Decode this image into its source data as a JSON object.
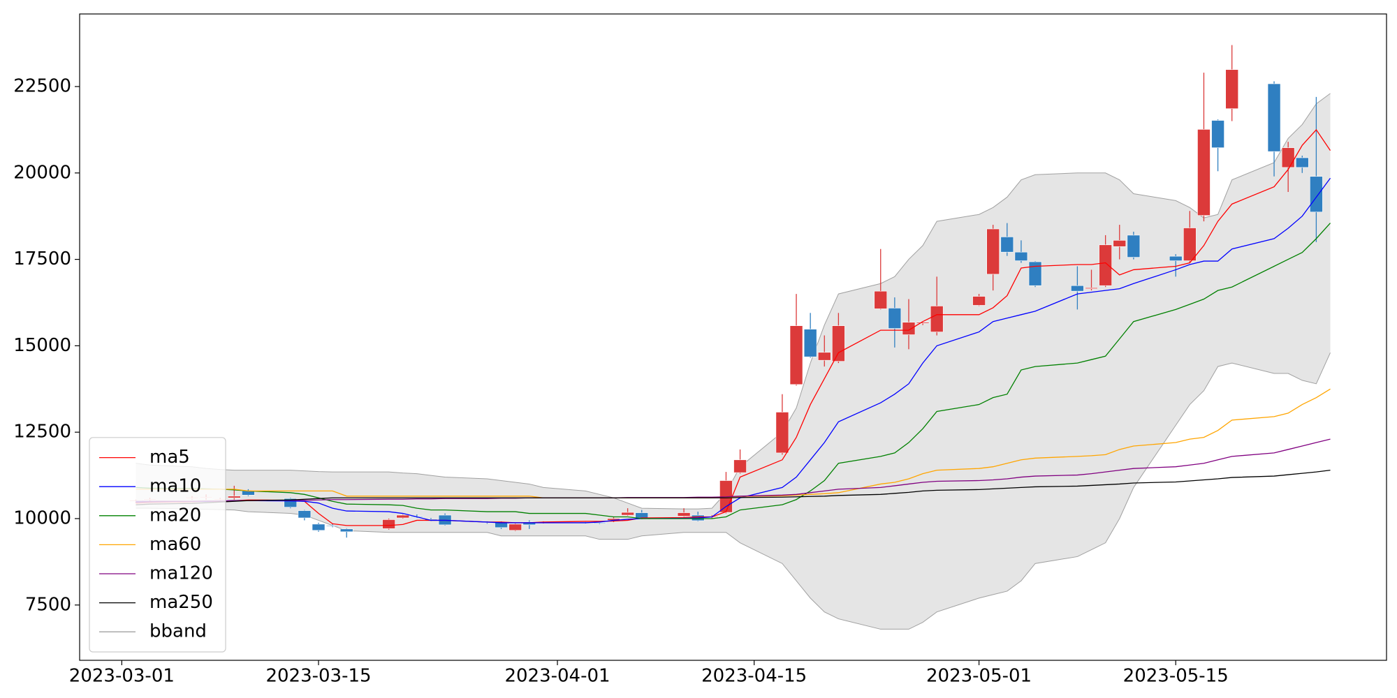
{
  "chart_data": {
    "type": "candlestick",
    "x": [
      "2023-03-02",
      "2023-03-03",
      "2023-03-06",
      "2023-03-07",
      "2023-03-08",
      "2023-03-09",
      "2023-03-10",
      "2023-03-13",
      "2023-03-14",
      "2023-03-15",
      "2023-03-16",
      "2023-03-17",
      "2023-03-20",
      "2023-03-21",
      "2023-03-22",
      "2023-03-23",
      "2023-03-24",
      "2023-03-27",
      "2023-03-28",
      "2023-03-29",
      "2023-03-30",
      "2023-03-31",
      "2023-04-03",
      "2023-04-04",
      "2023-04-05",
      "2023-04-06",
      "2023-04-07",
      "2023-04-10",
      "2023-04-11",
      "2023-04-12",
      "2023-04-13",
      "2023-04-14",
      "2023-04-17",
      "2023-04-18",
      "2023-04-19",
      "2023-04-20",
      "2023-04-21",
      "2023-04-24",
      "2023-04-25",
      "2023-04-26",
      "2023-04-27",
      "2023-04-28",
      "2023-05-01",
      "2023-05-02",
      "2023-05-03",
      "2023-05-04",
      "2023-05-05",
      "2023-05-08",
      "2023-05-09",
      "2023-05-10",
      "2023-05-11",
      "2023-05-12",
      "2023-05-15",
      "2023-05-16",
      "2023-05-17",
      "2023-05-18",
      "2023-05-19",
      "2023-05-22",
      "2023-05-23",
      "2023-05-24",
      "2023-05-25",
      "2023-05-26"
    ],
    "open": [
      10500,
      10550,
      10600,
      10600,
      10550,
      10600,
      10800,
      10580,
      10230,
      9840,
      9800,
      9700,
      9710,
      10020,
      10060,
      9980,
      10100,
      9900,
      9890,
      9660,
      9900,
      9880,
      9900,
      9880,
      9950,
      10100,
      10170,
      10070,
      10100,
      10050,
      10180,
      11330,
      11900,
      13880,
      15480,
      14580,
      14550,
      16070,
      16090,
      15320,
      15650,
      15400,
      16170,
      17070,
      18150,
      17710,
      17430,
      16740,
      16650,
      16740,
      17870,
      18200,
      17590,
      17460,
      18770,
      21520,
      21860,
      22580,
      20160,
      20440,
      19900,
      null
    ],
    "high": [
      10550,
      10600,
      10650,
      10700,
      10600,
      10950,
      10850,
      10600,
      10250,
      9880,
      9850,
      9720,
      10000,
      10120,
      10120,
      10020,
      10150,
      9920,
      9920,
      9860,
      9950,
      9920,
      9930,
      9920,
      10050,
      10300,
      10250,
      10300,
      10200,
      10100,
      11350,
      12000,
      13600,
      16500,
      15950,
      15300,
      15950,
      17800,
      16400,
      16350,
      15700,
      17000,
      16500,
      18500,
      18550,
      18050,
      17450,
      17300,
      17200,
      18200,
      18500,
      18300,
      17650,
      18900,
      22900,
      21550,
      23700,
      22650,
      20900,
      20500,
      22200,
      null
    ],
    "low": [
      10450,
      10500,
      10550,
      10550,
      10500,
      10550,
      10650,
      10300,
      9950,
      9620,
      9750,
      9450,
      9680,
      10000,
      10020,
      9930,
      9800,
      9850,
      9700,
      9640,
      9700,
      9860,
      9860,
      9840,
      9900,
      10080,
      9980,
      10050,
      9920,
      10000,
      10150,
      11300,
      11850,
      13850,
      14650,
      14400,
      14500,
      16050,
      14950,
      14900,
      15600,
      15300,
      16150,
      16600,
      17600,
      17400,
      16700,
      16050,
      16600,
      16700,
      17500,
      17500,
      17000,
      17400,
      18600,
      20050,
      21500,
      19900,
      19450,
      20000,
      18000,
      null
    ],
    "close": [
      10520,
      10560,
      10600,
      10620,
      10560,
      10650,
      10680,
      10330,
      10020,
      9660,
      9780,
      9620,
      9970,
      10100,
      10050,
      9950,
      9820,
      9880,
      9740,
      9840,
      9820,
      9900,
      9890,
      9870,
      10000,
      10180,
      9990,
      10170,
      9940,
      10060,
      11100,
      11700,
      13080,
      15580,
      14680,
      14810,
      15580,
      16580,
      15500,
      15680,
      15680,
      16150,
      16430,
      18380,
      17710,
      17460,
      16740,
      16580,
      16680,
      17920,
      18050,
      17560,
      17460,
      18410,
      21260,
      20730,
      22990,
      20620,
      20730,
      20160,
      18870,
      null
    ],
    "up_color": "#dc3a3a",
    "down_color": "#2f7fc1",
    "series": [
      {
        "name": "ma5",
        "color": "#ff0000",
        "values": [
          10450,
          10470,
          10490,
          10500,
          10500,
          10520,
          10540,
          10530,
          10500,
          10150,
          9850,
          9800,
          9800,
          9830,
          9950,
          9950,
          9950,
          9900,
          9900,
          9880,
          9880,
          9900,
          9920,
          9920,
          9930,
          9950,
          10020,
          10030,
          10050,
          10050,
          10200,
          11200,
          11700,
          12350,
          13300,
          14050,
          14800,
          15450,
          15450,
          15450,
          15700,
          15900,
          15900,
          16100,
          16450,
          17250,
          17300,
          17350,
          17350,
          17400,
          17050,
          17200,
          17300,
          17400,
          17900,
          18600,
          19100,
          19600,
          20100,
          20800,
          21250,
          20650
        ]
      },
      {
        "name": "ma10",
        "color": "#0000ff",
        "values": [
          10480,
          10490,
          10500,
          10500,
          10510,
          10520,
          10520,
          10510,
          10500,
          10450,
          10300,
          10220,
          10200,
          10150,
          10050,
          9950,
          9950,
          9900,
          9880,
          9880,
          9880,
          9880,
          9880,
          9900,
          9950,
          9980,
          10000,
          10010,
          10020,
          10050,
          10350,
          10600,
          10900,
          11200,
          11700,
          12200,
          12800,
          13350,
          13600,
          13900,
          14500,
          15000,
          15400,
          15700,
          15800,
          15900,
          16000,
          16500,
          16550,
          16600,
          16650,
          16800,
          17200,
          17350,
          17450,
          17450,
          17800,
          18100,
          18400,
          18750,
          19300,
          19850
        ]
      },
      {
        "name": "ma20",
        "color": "#008000",
        "values": [
          10900,
          10880,
          10870,
          10860,
          10850,
          10830,
          10800,
          10750,
          10700,
          10600,
          10500,
          10420,
          10400,
          10380,
          10300,
          10250,
          10250,
          10200,
          10200,
          10200,
          10150,
          10150,
          10150,
          10100,
          10050,
          10050,
          10000,
          10000,
          10000,
          10000,
          10050,
          10250,
          10400,
          10550,
          10800,
          11100,
          11600,
          11800,
          11900,
          12200,
          12600,
          13100,
          13300,
          13500,
          13600,
          14300,
          14400,
          14500,
          14600,
          14700,
          15200,
          15700,
          16050,
          16200,
          16350,
          16600,
          16700,
          17300,
          17500,
          17700,
          18100,
          18550
        ]
      },
      {
        "name": "ma60",
        "color": "#ffa500",
        "values": [
          10850,
          10850,
          10850,
          10850,
          10850,
          10850,
          10800,
          10800,
          10800,
          10800,
          10800,
          10650,
          10650,
          10650,
          10650,
          10650,
          10650,
          10650,
          10650,
          10650,
          10650,
          10600,
          10600,
          10600,
          10600,
          10600,
          10600,
          10600,
          10600,
          10600,
          10620,
          10640,
          10660,
          10680,
          10700,
          10720,
          10750,
          11000,
          11050,
          11150,
          11300,
          11400,
          11450,
          11500,
          11600,
          11700,
          11750,
          11800,
          11820,
          11850,
          12000,
          12100,
          12200,
          12300,
          12350,
          12550,
          12850,
          12950,
          13050,
          13300,
          13500,
          13750
        ]
      },
      {
        "name": "ma120",
        "color": "#800080",
        "values": [
          10500,
          10500,
          10500,
          10510,
          10510,
          10520,
          10520,
          10530,
          10530,
          10540,
          10550,
          10550,
          10560,
          10560,
          10570,
          10570,
          10580,
          10580,
          10590,
          10590,
          10600,
          10600,
          10600,
          10600,
          10600,
          10610,
          10610,
          10610,
          10620,
          10620,
          10630,
          10650,
          10680,
          10700,
          10750,
          10800,
          10850,
          10900,
          10950,
          11000,
          11050,
          11080,
          11100,
          11120,
          11150,
          11200,
          11230,
          11260,
          11300,
          11350,
          11400,
          11450,
          11500,
          11550,
          11600,
          11700,
          11800,
          11900,
          12000,
          12100,
          12200,
          12300
        ]
      },
      {
        "name": "ma250",
        "color": "#000000",
        "values": [
          10400,
          10420,
          10440,
          10460,
          10480,
          10500,
          10520,
          10540,
          10560,
          10580,
          10600,
          10600,
          10600,
          10600,
          10600,
          10600,
          10600,
          10600,
          10600,
          10600,
          10600,
          10600,
          10600,
          10600,
          10600,
          10600,
          10600,
          10600,
          10600,
          10600,
          10600,
          10610,
          10620,
          10630,
          10640,
          10650,
          10670,
          10700,
          10730,
          10760,
          10800,
          10820,
          10840,
          10860,
          10880,
          10900,
          10920,
          10940,
          10960,
          10980,
          11000,
          11030,
          11060,
          11090,
          11120,
          11150,
          11190,
          11230,
          11270,
          11310,
          11350,
          11400
        ]
      }
    ],
    "bband": {
      "name": "bband",
      "color": "#a0a0a0",
      "fill": "#e5e5e5",
      "upper": [
        11600,
        11550,
        11500,
        11450,
        11420,
        11400,
        11400,
        11400,
        11380,
        11360,
        11350,
        11350,
        11350,
        11320,
        11300,
        11250,
        11200,
        11150,
        11100,
        11050,
        11000,
        10900,
        10800,
        10700,
        10600,
        10450,
        10300,
        10280,
        10280,
        10300,
        10750,
        11500,
        12500,
        13200,
        14500,
        15600,
        16500,
        16800,
        17000,
        17500,
        17900,
        18600,
        18800,
        19000,
        19300,
        19800,
        19950,
        20000,
        20000,
        20000,
        19800,
        19400,
        19200,
        19000,
        18700,
        18800,
        19800,
        20300,
        21000,
        21400,
        22000,
        22300
      ],
      "lower": [
        10300,
        10300,
        10280,
        10270,
        10260,
        10250,
        10200,
        10150,
        10100,
        9950,
        9800,
        9650,
        9600,
        9600,
        9600,
        9600,
        9600,
        9600,
        9500,
        9500,
        9500,
        9500,
        9500,
        9400,
        9400,
        9400,
        9500,
        9600,
        9600,
        9600,
        9600,
        9300,
        8700,
        8200,
        7700,
        7300,
        7100,
        6800,
        6800,
        6800,
        7000,
        7300,
        7700,
        7800,
        7900,
        8200,
        8700,
        8900,
        9100,
        9300,
        10000,
        10900,
        12700,
        13300,
        13700,
        14400,
        14500,
        14200,
        14200,
        14000,
        13900,
        14800
      ]
    },
    "xlim": [
      "2023-02-26",
      "2023-05-30"
    ],
    "xticks": [
      "2023-03-01",
      "2023-03-15",
      "2023-04-01",
      "2023-04-15",
      "2023-05-01",
      "2023-05-15"
    ],
    "ylim": [
      5900,
      24600
    ],
    "yticks": [
      7500,
      10000,
      12500,
      15000,
      17500,
      20000,
      22500
    ],
    "legend": "lower left"
  }
}
